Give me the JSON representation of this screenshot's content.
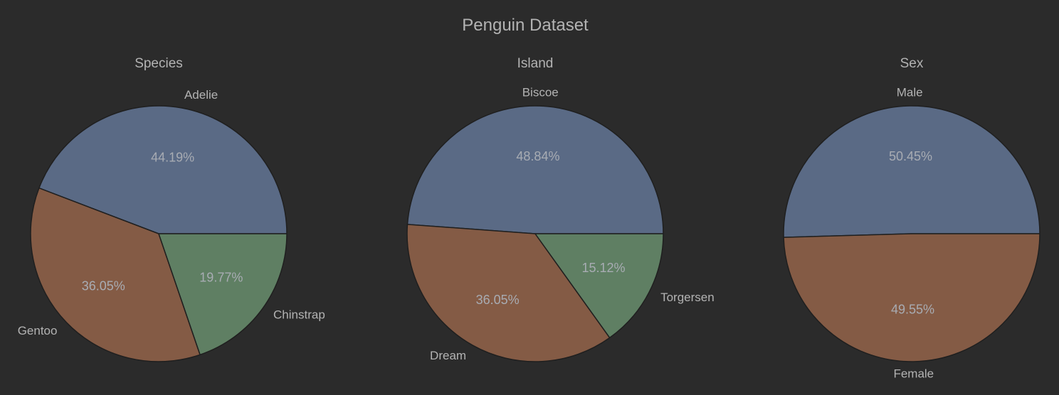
{
  "figure": {
    "title": "Penguin Dataset"
  },
  "style": {
    "background": "#2b2b2b",
    "text_color": "#b3b3b3",
    "pct_color": "#a8acb3",
    "edge_color": "#1f1f1f"
  },
  "chart_data": [
    {
      "type": "pie",
      "title": "Species",
      "start_angle_deg": 0,
      "direction": "counterclockwise",
      "slices": [
        {
          "label": "Adelie",
          "value": 44.19,
          "pct_text": "44.19%",
          "color": "#5a6a85"
        },
        {
          "label": "Gentoo",
          "value": 36.05,
          "pct_text": "36.05%",
          "color": "#845b45"
        },
        {
          "label": "Chinstrap",
          "value": 19.77,
          "pct_text": "19.77%",
          "color": "#5f7f63"
        }
      ]
    },
    {
      "type": "pie",
      "title": "Island",
      "start_angle_deg": 0,
      "direction": "counterclockwise",
      "slices": [
        {
          "label": "Biscoe",
          "value": 48.84,
          "pct_text": "48.84%",
          "color": "#5a6a85"
        },
        {
          "label": "Dream",
          "value": 36.05,
          "pct_text": "36.05%",
          "color": "#845b45"
        },
        {
          "label": "Torgersen",
          "value": 15.12,
          "pct_text": "15.12%",
          "color": "#5f7f63"
        }
      ]
    },
    {
      "type": "pie",
      "title": "Sex",
      "start_angle_deg": 0,
      "direction": "counterclockwise",
      "slices": [
        {
          "label": "Male",
          "value": 50.45,
          "pct_text": "50.45%",
          "color": "#5a6a85"
        },
        {
          "label": "Female",
          "value": 49.55,
          "pct_text": "49.55%",
          "color": "#845b45"
        }
      ]
    }
  ]
}
